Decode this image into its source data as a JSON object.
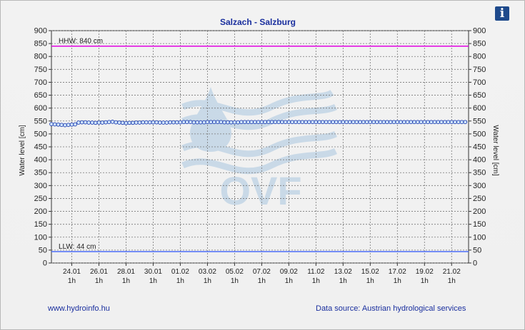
{
  "chart_data": {
    "type": "line",
    "title": "Salzach - Salzburg",
    "ylabel_left": "Water level [cm]",
    "ylabel_right": "Water level [cm]",
    "ylim": [
      0,
      900
    ],
    "yticks": [
      0,
      50,
      100,
      150,
      200,
      250,
      300,
      350,
      400,
      450,
      500,
      550,
      600,
      650,
      700,
      750,
      800,
      850,
      900
    ],
    "xlim_days": [
      0,
      30.75
    ],
    "xticks": [
      {
        "date": "24.01",
        "time": "1h",
        "day": 1.5
      },
      {
        "date": "26.01",
        "time": "1h",
        "day": 3.5
      },
      {
        "date": "28.01",
        "time": "1h",
        "day": 5.5
      },
      {
        "date": "30.01",
        "time": "1h",
        "day": 7.5
      },
      {
        "date": "01.02",
        "time": "1h",
        "day": 9.5
      },
      {
        "date": "03.02",
        "time": "1h",
        "day": 11.5
      },
      {
        "date": "05.02",
        "time": "1h",
        "day": 13.5
      },
      {
        "date": "07.02",
        "time": "1h",
        "day": 15.5
      },
      {
        "date": "09.02",
        "time": "1h",
        "day": 17.5
      },
      {
        "date": "11.02",
        "time": "1h",
        "day": 19.5
      },
      {
        "date": "13.02",
        "time": "1h",
        "day": 21.5
      },
      {
        "date": "15.02",
        "time": "1h",
        "day": 23.5
      },
      {
        "date": "17.02",
        "time": "1h",
        "day": 25.5
      },
      {
        "date": "19.02",
        "time": "1h",
        "day": 27.5
      },
      {
        "date": "21.02",
        "time": "1h",
        "day": 29.5
      }
    ],
    "grid": true,
    "thresholds": [
      {
        "label": "HHW: 840 cm",
        "value": 840,
        "color": "#e000e0"
      },
      {
        "label": "LLW: 44 cm",
        "value": 44,
        "color": "#4a6cf7"
      }
    ],
    "series": [
      {
        "color": "#1f3fae",
        "point_fill": "#cfe4ff",
        "start_day": 0,
        "step_days": 0.25,
        "values": [
          538,
          537,
          536,
          535,
          534,
          535,
          536,
          537,
          544,
          545,
          545,
          544,
          544,
          543,
          544,
          544,
          545,
          546,
          547,
          545,
          544,
          543,
          542,
          543,
          543,
          544,
          544,
          545,
          545,
          545,
          545,
          545,
          544,
          544,
          544,
          545,
          545,
          545,
          545,
          546,
          546,
          546,
          545,
          545,
          545,
          545,
          546,
          546,
          546,
          546,
          546,
          545,
          545,
          545,
          545,
          545,
          546,
          546,
          546,
          546,
          546,
          546,
          546,
          546,
          546,
          546,
          546,
          546,
          546,
          546,
          546,
          546,
          546,
          546,
          546,
          546,
          546,
          546,
          546,
          546,
          546,
          546,
          546,
          546,
          546,
          546,
          546,
          546,
          546,
          546,
          546,
          546,
          546,
          546,
          546,
          546,
          546,
          546,
          546,
          546,
          546,
          546,
          546,
          546,
          546,
          546,
          546,
          546,
          546,
          546,
          546,
          546,
          546,
          546,
          546,
          546,
          546,
          546,
          546,
          546,
          546,
          546,
          546
        ]
      }
    ]
  },
  "watermark": {
    "text": "OVF",
    "color": "#a9c7e0"
  },
  "info_icon": {
    "name": "info-icon",
    "glyph": "i"
  },
  "footer": {
    "website": "www.hydroinfo.hu",
    "source": "Data source: Austrian hydrological services"
  }
}
